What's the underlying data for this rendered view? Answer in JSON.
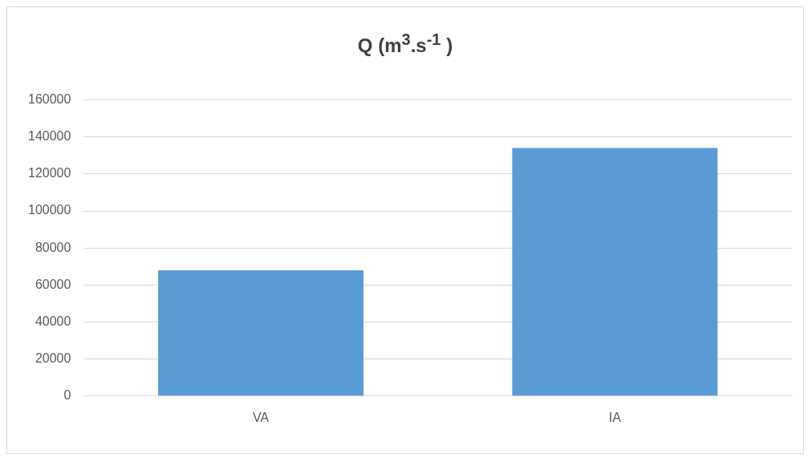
{
  "chart_data": {
    "type": "bar",
    "title": "Q (m$^{3}$.s$^{-1}$ )",
    "categories": [
      "VA",
      "IA"
    ],
    "values": [
      68000,
      134000
    ],
    "color": "#5b9bd5",
    "ylim": [
      0,
      160000
    ],
    "yticks": [
      0,
      20000,
      40000,
      60000,
      80000,
      100000,
      120000,
      140000,
      160000
    ],
    "grid": "y"
  }
}
